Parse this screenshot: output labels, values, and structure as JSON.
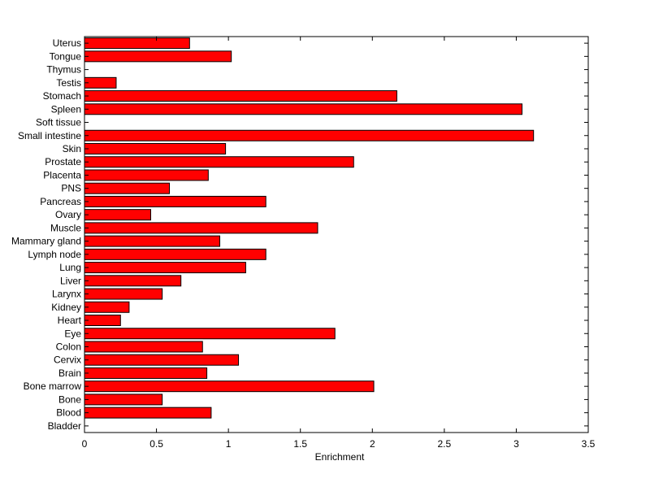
{
  "chart_data": {
    "type": "bar",
    "orientation": "horizontal",
    "title": "",
    "xlabel": "Enrichment",
    "ylabel": "",
    "xlim": [
      0,
      3.5
    ],
    "xticks": [
      0,
      0.5,
      1,
      1.5,
      2,
      2.5,
      3,
      3.5
    ],
    "xtick_labels": [
      "0",
      "0.5",
      "1",
      "1.5",
      "2",
      "2.5",
      "3",
      "3.5"
    ],
    "grid": false,
    "bar_color": "#ff0000",
    "categories": [
      "Bladder",
      "Blood",
      "Bone",
      "Bone marrow",
      "Brain",
      "Cervix",
      "Colon",
      "Eye",
      "Heart",
      "Kidney",
      "Larynx",
      "Liver",
      "Lung",
      "Lymph node",
      "Mammary gland",
      "Muscle",
      "Ovary",
      "Pancreas",
      "PNS",
      "Placenta",
      "Prostate",
      "Skin",
      "Small intestine",
      "Soft tissue",
      "Spleen",
      "Stomach",
      "Testis",
      "Thymus",
      "Tongue",
      "Uterus"
    ],
    "values": [
      0,
      0.88,
      0.54,
      2.01,
      0.85,
      1.07,
      0.82,
      1.74,
      0.25,
      0.31,
      0.54,
      0.67,
      1.12,
      1.26,
      0.94,
      1.62,
      0.46,
      1.26,
      0.59,
      0.86,
      1.87,
      0.98,
      3.12,
      0,
      3.04,
      2.17,
      0.22,
      0,
      1.02,
      0.73
    ]
  }
}
